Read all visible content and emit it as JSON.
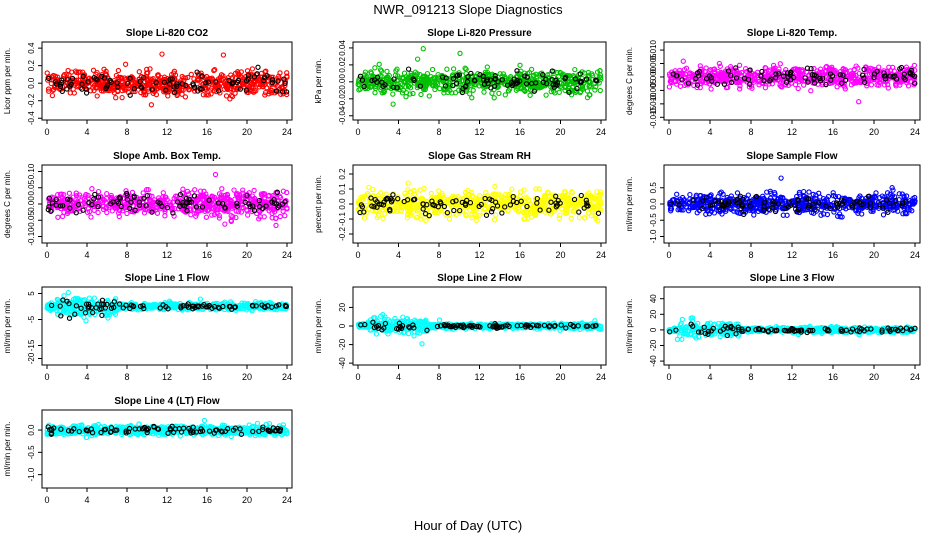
{
  "figure_title": "NWR_091213  Slope Diagnostics",
  "x_axis_label": "Hour of Day (UTC)",
  "chart_data": [
    {
      "type": "scatter",
      "title": "Slope Li-820 CO2",
      "ylabel": "Licor ppm per min.",
      "color": "#ff0000",
      "x_ticks": [
        0,
        4,
        8,
        12,
        16,
        20,
        24
      ],
      "xlim": [
        0,
        24
      ],
      "y_ticks": [
        0.4,
        0.2,
        0.0,
        -0.2,
        -0.4
      ],
      "y_tick_labels": [
        "0.4",
        "0.2",
        "0.0",
        "-0.2",
        "-0.4"
      ],
      "ylim": [
        -0.42,
        0.47
      ],
      "spread": 0.13,
      "n_color": 640,
      "n_black": 90
    },
    {
      "type": "scatter",
      "title": "Slope Li-820 Pressure",
      "ylabel": "kPa per min.",
      "color": "#00c000",
      "x_ticks": [
        0,
        4,
        8,
        12,
        16,
        20,
        24
      ],
      "xlim": [
        0,
        24
      ],
      "y_ticks": [
        0.04,
        0.02,
        0.0,
        -0.02,
        -0.04
      ],
      "y_tick_labels": [
        "0.04",
        "0.02",
        "0.00",
        "-0.02",
        "-0.04"
      ],
      "ylim": [
        -0.045,
        0.047
      ],
      "spread": 0.012,
      "n_color": 640,
      "n_black": 90
    },
    {
      "type": "scatter",
      "title": "Slope Li-820 Temp.",
      "ylabel": "degrees C per min.",
      "color": "#ff00ff",
      "x_ticks": [
        0,
        4,
        8,
        12,
        16,
        20,
        24
      ],
      "xlim": [
        0,
        24
      ],
      "y_ticks": [
        0.01,
        0.005,
        0.0,
        -0.005,
        -0.01,
        -0.015
      ],
      "y_tick_labels": [
        "0.010",
        "0.005",
        "0.000",
        "-0.005",
        "-0.010",
        "-0.015"
      ],
      "ylim": [
        -0.016,
        0.013
      ],
      "spread": 0.0035,
      "n_color": 640,
      "n_black": 90
    },
    {
      "type": "scatter",
      "title": "Slope Amb. Box Temp.",
      "ylabel": "degrees C per min.",
      "color": "#ff00ff",
      "x_ticks": [
        0,
        4,
        8,
        12,
        16,
        20,
        24
      ],
      "xlim": [
        0,
        24
      ],
      "y_ticks": [
        0.1,
        0.05,
        0.0,
        -0.05,
        -0.1
      ],
      "y_tick_labels": [
        "0.10",
        "0.05",
        "0.00",
        "-0.05",
        "-0.10"
      ],
      "ylim": [
        -0.12,
        0.12
      ],
      "spread": 0.035,
      "n_color": 640,
      "n_black": 90
    },
    {
      "type": "scatter",
      "title": "Slope Gas Stream RH",
      "ylabel": "percent per min.",
      "color": "#ffff00",
      "x_ticks": [
        0,
        4,
        8,
        12,
        16,
        20,
        24
      ],
      "xlim": [
        0,
        24
      ],
      "y_ticks": [
        0.2,
        0.1,
        0.0,
        -0.1,
        -0.2
      ],
      "y_tick_labels": [
        "0.2",
        "0.1",
        "0.0",
        "-0.1",
        "-0.2"
      ],
      "ylim": [
        -0.26,
        0.26
      ],
      "spread": 0.075,
      "n_color": 640,
      "n_black": 90
    },
    {
      "type": "scatter",
      "title": "Slope Sample Flow",
      "ylabel": "ml/min per min.",
      "color": "#0000ff",
      "x_ticks": [
        0,
        4,
        8,
        12,
        16,
        20,
        24
      ],
      "xlim": [
        0,
        24
      ],
      "y_ticks": [
        0.5,
        0.0,
        -0.5,
        -1.0
      ],
      "y_tick_labels": [
        "0.5",
        "0.0",
        "-0.5",
        "-1.0"
      ],
      "ylim": [
        -1.2,
        1.2
      ],
      "spread": 0.28,
      "n_color": 640,
      "n_black": 90
    },
    {
      "type": "scatter",
      "title": "Slope Line 1 Flow",
      "ylabel": "ml/min per min.",
      "color": "#00ffff",
      "x_ticks": [
        0,
        4,
        8,
        12,
        16,
        20,
        24
      ],
      "xlim": [
        0,
        24
      ],
      "y_ticks": [
        5,
        -5,
        -15,
        -20
      ],
      "y_tick_labels": [
        "5",
        "-5",
        "-15",
        "-20"
      ],
      "ylim": [
        -22.5,
        7.5
      ],
      "spread": 1.2,
      "n_color": 640,
      "n_black": 90
    },
    {
      "type": "scatter",
      "title": "Slope Line 2 Flow",
      "ylabel": "ml/min per min.",
      "color": "#00ffff",
      "x_ticks": [
        0,
        4,
        8,
        12,
        16,
        20,
        24
      ],
      "xlim": [
        0,
        24
      ],
      "y_ticks": [
        20,
        0,
        -20,
        -40
      ],
      "y_tick_labels": [
        "20",
        "0",
        "-20",
        "-40"
      ],
      "ylim": [
        -42,
        42
      ],
      "spread": 2.5,
      "n_color": 640,
      "n_black": 90
    },
    {
      "type": "scatter",
      "title": "Slope Line 3 Flow",
      "ylabel": "ml/min per min.",
      "color": "#00ffff",
      "x_ticks": [
        0,
        4,
        8,
        12,
        16,
        20,
        24
      ],
      "xlim": [
        0,
        24
      ],
      "y_ticks": [
        40,
        20,
        0,
        -20,
        -40
      ],
      "y_tick_labels": [
        "40",
        "20",
        "0",
        "-20",
        "-40"
      ],
      "ylim": [
        -45,
        55
      ],
      "spread": 3,
      "n_color": 640,
      "n_black": 90
    },
    {
      "type": "scatter",
      "title": "Slope Line 4 (LT) Flow",
      "ylabel": "ml/min per min.",
      "color": "#00ffff",
      "x_ticks": [
        0,
        4,
        8,
        12,
        16,
        20,
        24
      ],
      "xlim": [
        0,
        24
      ],
      "y_ticks": [
        0.0,
        -0.5,
        -1.0
      ],
      "y_tick_labels": [
        "0.0",
        "-0.5",
        "-1.0"
      ],
      "ylim": [
        -1.3,
        0.45
      ],
      "spread": 0.1,
      "n_color": 640,
      "n_black": 90
    }
  ]
}
